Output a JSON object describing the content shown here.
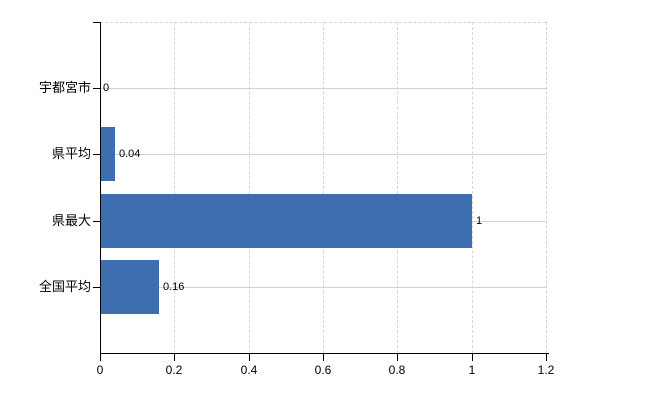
{
  "chart_data": {
    "type": "bar",
    "orientation": "horizontal",
    "title": "",
    "xlabel": "",
    "ylabel": "",
    "categories": [
      "宇都宮市",
      "県平均",
      "県最大",
      "全国平均"
    ],
    "values": [
      0,
      0.04,
      1,
      0.16
    ],
    "value_labels": [
      "0",
      "0.04",
      "1",
      "0.16"
    ],
    "x_axis": {
      "min": 0,
      "max": 1.2,
      "tick_interval": 0.2,
      "tick_labels": [
        "0",
        "0.2",
        "0.4",
        "0.6",
        "0.8",
        "1",
        "1.2"
      ]
    },
    "grid": {
      "vertical": true,
      "horizontal": true
    },
    "legend": false,
    "colors": {
      "bar": "#3d6fb0",
      "axis": "#000000",
      "grid_vertical": "#dcd4dc",
      "grid_horizontal": "#ccd6cc",
      "plot_border_dashed": "#d9d0d9",
      "text": "#000000"
    }
  }
}
